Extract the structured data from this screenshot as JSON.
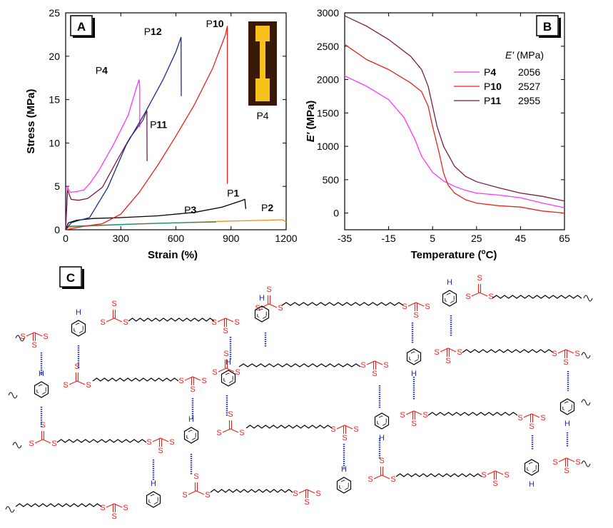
{
  "panels": {
    "a": "A",
    "b": "B",
    "c": "C"
  },
  "chart_data": [
    {
      "id": "A",
      "type": "line",
      "xlabel": "Strain (%)",
      "ylabel": "Stress (MPa)",
      "xlim": [
        0,
        1200
      ],
      "ylim": [
        0,
        25
      ],
      "xticks": [
        0,
        300,
        600,
        900,
        1200
      ],
      "yticks": [
        0,
        5,
        10,
        15,
        20,
        25
      ],
      "inset_caption": "P4",
      "series": [
        {
          "name": "P1",
          "color": "#000000",
          "x": [
            0,
            15,
            60,
            150,
            300,
            500,
            700,
            850,
            950,
            975,
            980
          ],
          "y": [
            0,
            0.8,
            1.1,
            1.3,
            1.4,
            1.6,
            2.0,
            2.6,
            3.3,
            3.5,
            2.4
          ]
        },
        {
          "name": "P2",
          "color": "#e8901e",
          "x": [
            0,
            15,
            100,
            300,
            600,
            900,
            1100,
            1180,
            1200
          ],
          "y": [
            0,
            0.3,
            0.4,
            0.6,
            0.8,
            1.0,
            1.1,
            1.15,
            0.9
          ]
        },
        {
          "name": "P3",
          "color": "#1a8a7a",
          "x": [
            0,
            15,
            100,
            300,
            500,
            700,
            820
          ],
          "y": [
            0,
            0.4,
            0.45,
            0.6,
            0.75,
            0.85,
            0.9
          ]
        },
        {
          "name": "P4",
          "color": "#ff33ff",
          "x": [
            0,
            10,
            25,
            60,
            100,
            130,
            180,
            260,
            340,
            390,
            400,
            403,
            403
          ],
          "y": [
            0,
            4.9,
            4.3,
            4.4,
            4.6,
            5.3,
            6.8,
            9.8,
            13.2,
            16.7,
            17.3,
            16.5,
            11.8
          ]
        },
        {
          "name": "P10",
          "color": "#e8231e",
          "x": [
            0,
            100,
            200,
            300,
            400,
            500,
            600,
            700,
            800,
            870,
            880,
            880
          ],
          "y": [
            0,
            0.4,
            0.7,
            1.8,
            4.3,
            7.4,
            10.8,
            14.4,
            18.6,
            22.5,
            23.5,
            5.3
          ]
        },
        {
          "name": "P11",
          "color": "#7a1a4a",
          "x": [
            0,
            10,
            30,
            70,
            120,
            200,
            280,
            350,
            420,
            442,
            443
          ],
          "y": [
            0,
            4.6,
            3.5,
            3.4,
            3.6,
            4.9,
            8.0,
            10.6,
            12.6,
            13.7,
            7.9
          ]
        },
        {
          "name": "P12",
          "color": "#1a2a8a",
          "x": [
            0,
            30,
            60,
            130,
            230,
            330,
            430,
            530,
            600,
            628,
            629
          ],
          "y": [
            0,
            0.8,
            1.0,
            1.4,
            4.9,
            9.8,
            13.4,
            17.3,
            20.5,
            22.2,
            15.4
          ]
        }
      ],
      "labels": [
        "P1",
        "P2",
        "P3",
        "P4",
        "P10",
        "P11",
        "P12"
      ]
    },
    {
      "id": "B",
      "type": "line",
      "xlabel": "Temperature (oC)",
      "ylabel": "E' (MPa)",
      "xlim": [
        -35,
        65
      ],
      "ylim": [
        -250,
        3000
      ],
      "xticks": [
        -35,
        -15,
        5,
        25,
        45,
        65
      ],
      "yticks": [
        0,
        500,
        1000,
        1500,
        2000,
        2500,
        3000
      ],
      "legend_header": "E' (MPa)",
      "legend": [
        {
          "name": "P4",
          "value": "2056"
        },
        {
          "name": "P10",
          "value": "2527"
        },
        {
          "name": "P11",
          "value": "2955"
        }
      ],
      "series": [
        {
          "name": "P4",
          "color": "#ff33ff",
          "x": [
            -35,
            -25,
            -15,
            -8,
            -3,
            0,
            5,
            10,
            15,
            20,
            25,
            35,
            45,
            55,
            65
          ],
          "y": [
            2056,
            1900,
            1700,
            1430,
            1100,
            850,
            610,
            480,
            400,
            340,
            300,
            270,
            230,
            150,
            80
          ]
        },
        {
          "name": "P10",
          "color": "#e8231e",
          "x": [
            -35,
            -25,
            -15,
            -5,
            0,
            3,
            5,
            8,
            10,
            12,
            15,
            20,
            25,
            35,
            45,
            55,
            65
          ],
          "y": [
            2527,
            2300,
            2150,
            1950,
            1820,
            1600,
            1300,
            900,
            600,
            420,
            300,
            200,
            150,
            110,
            90,
            30,
            0
          ]
        },
        {
          "name": "P11",
          "color": "#7a1a4a",
          "x": [
            -35,
            -25,
            -15,
            -5,
            0,
            3,
            5,
            7,
            10,
            15,
            20,
            25,
            35,
            45,
            55,
            65
          ],
          "y": [
            2955,
            2800,
            2600,
            2350,
            2150,
            1900,
            1600,
            1300,
            1000,
            700,
            550,
            470,
            380,
            300,
            250,
            180
          ]
        }
      ]
    }
  ],
  "scheme": {
    "atoms": {
      "S": "S",
      "H": "H"
    },
    "colors": {
      "skeleton": "#000000",
      "trithiocarbonate": "#e8231e",
      "hbond": "#1a2acc"
    }
  }
}
